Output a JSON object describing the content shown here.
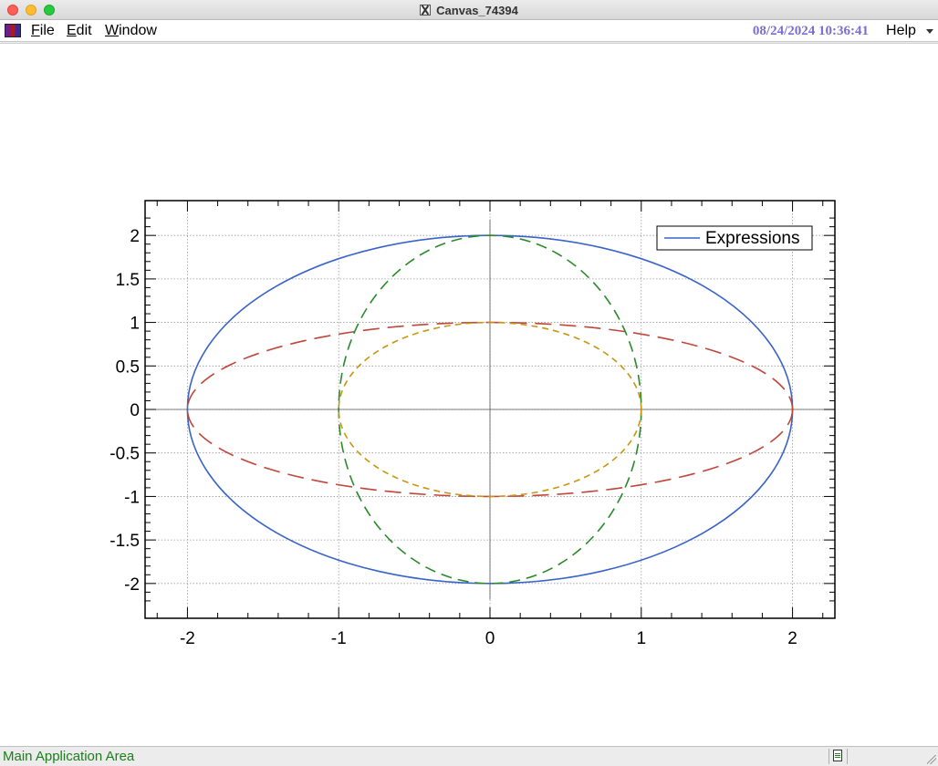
{
  "window": {
    "title": "Canvas_74394"
  },
  "menubar": {
    "items": [
      {
        "label": "File",
        "underline": "F",
        "rest": "ile"
      },
      {
        "label": "Edit",
        "underline": "E",
        "rest": "dit"
      },
      {
        "label": "Window",
        "underline": "W",
        "rest": "indow"
      }
    ],
    "datetime": "08/24/2024 10:36:41",
    "help": {
      "underline": "H",
      "rest": "elp"
    }
  },
  "statusbar": {
    "text": "Main Application Area"
  },
  "colors": {
    "blue": "#3a63c8",
    "red": "#c0463a",
    "green": "#2a8a2a",
    "gold": "#c8960e",
    "datetime": "#7a6fce",
    "status": "#1a7f1a"
  },
  "chart_data": {
    "type": "line",
    "title": "",
    "xlabel": "",
    "ylabel": "",
    "xlim": [
      -2.28,
      2.28
    ],
    "ylim": [
      -2.4,
      2.4
    ],
    "xticks": [
      -2,
      -1,
      0,
      1,
      2
    ],
    "xtick_labels": [
      "-2",
      "-1",
      "0",
      "1",
      "2"
    ],
    "yticks": [
      -2,
      -1.5,
      -1,
      -0.5,
      0,
      0.5,
      1,
      1.5,
      2
    ],
    "ytick_labels": [
      "-2",
      "-1.5",
      "-1",
      "-0.5",
      "0",
      "0.5",
      "1",
      "1.5",
      "2"
    ],
    "grid": true,
    "axes_lines_through_origin": true,
    "legend": {
      "position": "top-right",
      "entries": [
        "Expressions"
      ]
    },
    "series": [
      {
        "name": "Expressions",
        "kind": "ellipse",
        "rx": 2,
        "ry": 2,
        "color": "blue",
        "dash": "solid"
      },
      {
        "kind": "ellipse",
        "rx": 2,
        "ry": 1,
        "color": "red",
        "dash": "long-dash"
      },
      {
        "kind": "ellipse",
        "rx": 1,
        "ry": 2,
        "color": "green",
        "dash": "dash"
      },
      {
        "kind": "ellipse",
        "rx": 1,
        "ry": 1,
        "color": "gold",
        "dash": "short-dash"
      }
    ]
  }
}
